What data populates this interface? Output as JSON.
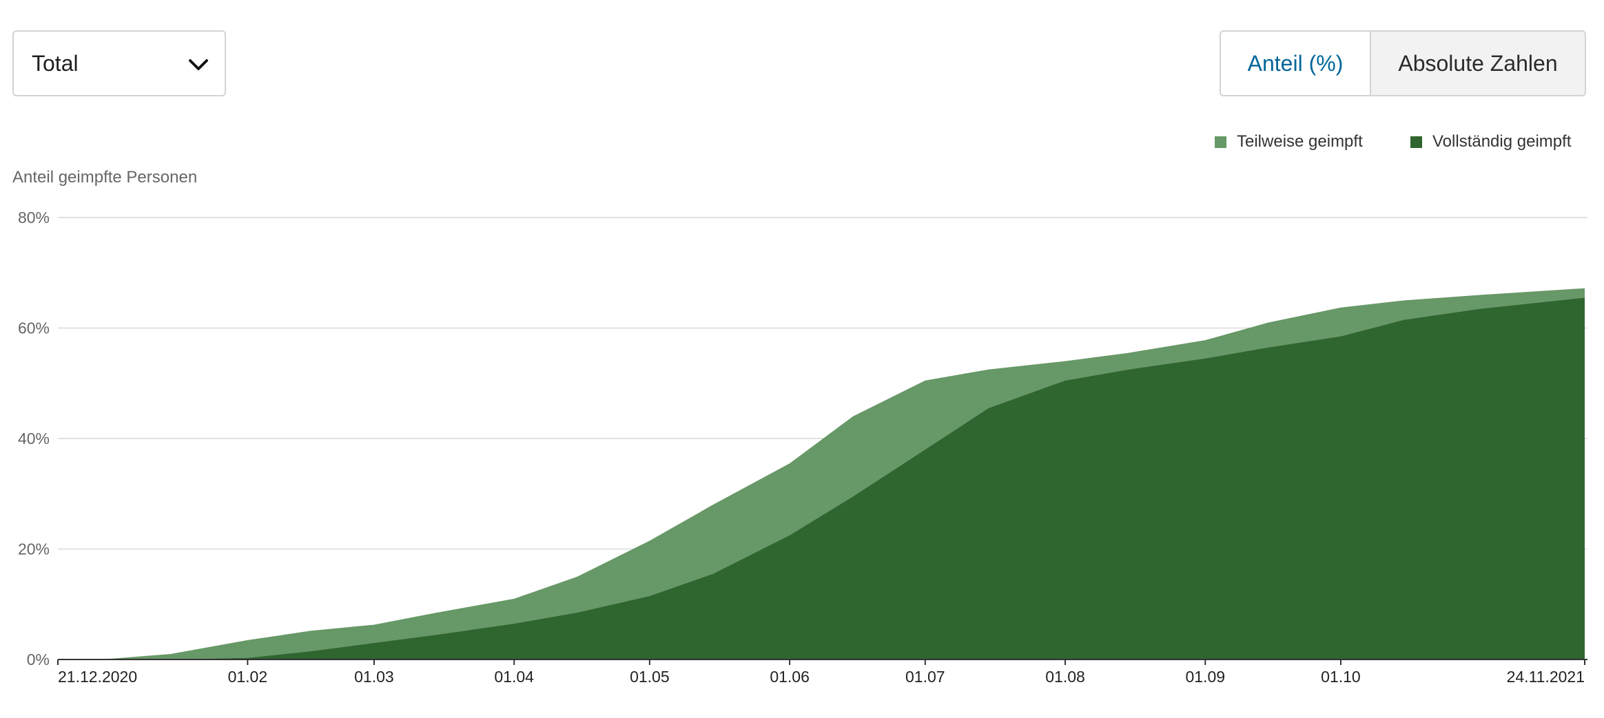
{
  "controls": {
    "dropdown": {
      "selected": "Total",
      "icon": "chevron-down-icon"
    },
    "toggle": [
      {
        "label": "Anteil (%)",
        "active": true
      },
      {
        "label": "Absolute Zahlen",
        "active": false
      }
    ]
  },
  "colors": {
    "partial": "#679867",
    "full": "#2f652f",
    "active_toggle_text": "#006699"
  },
  "chart_data": {
    "type": "area",
    "stacked": true,
    "ylabel": "Anteil geimpfte Personen",
    "ylim": [
      0,
      80
    ],
    "yticks": [
      {
        "value": 0,
        "label": "0%"
      },
      {
        "value": 20,
        "label": "20%"
      },
      {
        "value": 40,
        "label": "40%"
      },
      {
        "value": 60,
        "label": "60%"
      },
      {
        "value": 80,
        "label": "80%"
      }
    ],
    "xlim": [
      "2020-12-21",
      "2021-11-24"
    ],
    "xticks": [
      {
        "date": "2020-12-21",
        "label": "21.12.2020"
      },
      {
        "date": "2021-02-01",
        "label": "01.02"
      },
      {
        "date": "2021-03-01",
        "label": "01.03"
      },
      {
        "date": "2021-04-01",
        "label": "01.04"
      },
      {
        "date": "2021-05-01",
        "label": "01.05"
      },
      {
        "date": "2021-06-01",
        "label": "01.06"
      },
      {
        "date": "2021-07-01",
        "label": "01.07"
      },
      {
        "date": "2021-08-01",
        "label": "01.08"
      },
      {
        "date": "2021-09-01",
        "label": "01.09"
      },
      {
        "date": "2021-10-01",
        "label": "01.10"
      },
      {
        "date": "2021-11-24",
        "label": "24.11.2021"
      }
    ],
    "grid": true,
    "legend_position": "top-right",
    "legend": [
      "Teilweise geimpft",
      "Vollständig geimpft"
    ],
    "dates": [
      "2020-12-21",
      "2021-01-01",
      "2021-01-15",
      "2021-02-01",
      "2021-02-15",
      "2021-03-01",
      "2021-03-15",
      "2021-04-01",
      "2021-04-15",
      "2021-05-01",
      "2021-05-15",
      "2021-06-01",
      "2021-06-15",
      "2021-07-01",
      "2021-07-15",
      "2021-08-01",
      "2021-08-15",
      "2021-09-01",
      "2021-09-15",
      "2021-10-01",
      "2021-10-15",
      "2021-11-01",
      "2021-11-24"
    ],
    "series": [
      {
        "name": "Vollständig geimpft",
        "values": [
          0,
          0,
          0,
          0.3,
          1.5,
          3.0,
          4.5,
          6.5,
          8.5,
          11.5,
          15.5,
          22.5,
          29.5,
          38.0,
          45.5,
          50.5,
          52.5,
          54.5,
          56.5,
          58.5,
          61.5,
          63.5,
          65.5
        ]
      },
      {
        "name": "Teilweise geimpft",
        "values": [
          0,
          0.1,
          1.0,
          3.2,
          3.7,
          3.3,
          4.0,
          4.5,
          6.5,
          10.0,
          12.5,
          13.0,
          14.5,
          12.5,
          7.0,
          3.5,
          3.0,
          3.3,
          4.5,
          5.2,
          3.5,
          2.5,
          1.7
        ]
      }
    ]
  }
}
